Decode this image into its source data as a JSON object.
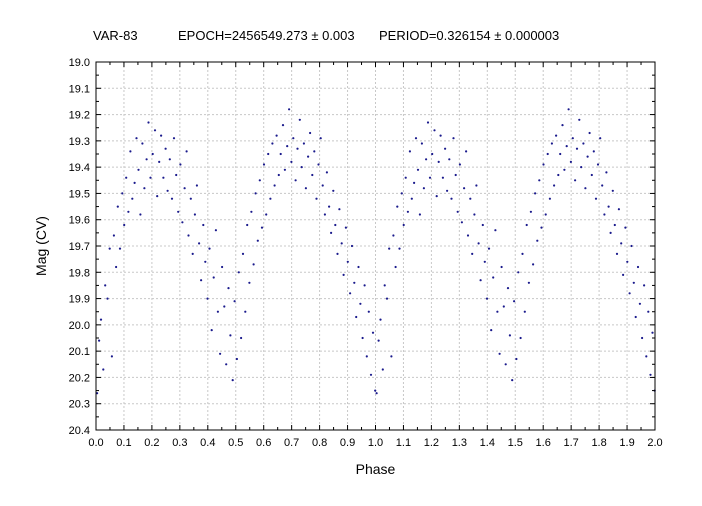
{
  "chart_data": {
    "type": "scatter",
    "title_parts": [
      "VAR-83",
      "EPOCH=2456549.273 ± 0.003",
      "PERIOD=0.326154 ± 0.000003"
    ],
    "xlabel": "Phase",
    "ylabel": "Mag (CV)",
    "xlim": [
      0.0,
      2.0
    ],
    "ylim": [
      19.0,
      20.4
    ],
    "y_inverted": true,
    "grid": true,
    "x_ticks": [
      "0.0",
      "0.1",
      "0.2",
      "0.3",
      "0.4",
      "0.5",
      "0.6",
      "0.7",
      "0.8",
      "0.9",
      "1.0",
      "1.1",
      "1.2",
      "1.3",
      "1.4",
      "1.5",
      "1.6",
      "1.7",
      "1.8",
      "1.9",
      "2.0"
    ],
    "y_ticks": [
      "19.0",
      "19.1",
      "19.2",
      "19.3",
      "19.4",
      "19.5",
      "19.6",
      "19.7",
      "19.8",
      "19.9",
      "20.0",
      "20.1",
      "20.2",
      "20.3",
      "20.4"
    ],
    "marker_color": "#1a1a8c",
    "grid_color": "#c8c8c8",
    "series": [
      {
        "points": [
          [
            0.004,
            20.26
          ],
          [
            0.011,
            20.06
          ],
          [
            0.018,
            19.98
          ],
          [
            0.026,
            20.17
          ],
          [
            0.033,
            19.85
          ],
          [
            0.041,
            19.9
          ],
          [
            0.049,
            19.71
          ],
          [
            0.057,
            20.12
          ],
          [
            0.064,
            19.66
          ],
          [
            0.072,
            19.78
          ],
          [
            0.078,
            19.55
          ],
          [
            0.086,
            19.71
          ],
          [
            0.094,
            19.5
          ],
          [
            0.101,
            19.62
          ],
          [
            0.108,
            19.44
          ],
          [
            0.116,
            19.57
          ],
          [
            0.123,
            19.34
          ],
          [
            0.13,
            19.52
          ],
          [
            0.138,
            19.46
          ],
          [
            0.145,
            19.29
          ],
          [
            0.152,
            19.41
          ],
          [
            0.159,
            19.58
          ],
          [
            0.166,
            19.31
          ],
          [
            0.173,
            19.48
          ],
          [
            0.181,
            19.37
          ],
          [
            0.188,
            19.23
          ],
          [
            0.195,
            19.44
          ],
          [
            0.203,
            19.35
          ],
          [
            0.211,
            19.26
          ],
          [
            0.219,
            19.51
          ],
          [
            0.226,
            19.38
          ],
          [
            0.233,
            19.28
          ],
          [
            0.241,
            19.44
          ],
          [
            0.249,
            19.33
          ],
          [
            0.256,
            19.49
          ],
          [
            0.264,
            19.37
          ],
          [
            0.272,
            19.52
          ],
          [
            0.279,
            19.29
          ],
          [
            0.287,
            19.43
          ],
          [
            0.294,
            19.57
          ],
          [
            0.302,
            19.39
          ],
          [
            0.309,
            19.61
          ],
          [
            0.317,
            19.48
          ],
          [
            0.324,
            19.34
          ],
          [
            0.331,
            19.66
          ],
          [
            0.339,
            19.52
          ],
          [
            0.346,
            19.73
          ],
          [
            0.354,
            19.58
          ],
          [
            0.361,
            19.47
          ],
          [
            0.369,
            19.69
          ],
          [
            0.376,
            19.83
          ],
          [
            0.384,
            19.62
          ],
          [
            0.391,
            19.76
          ],
          [
            0.399,
            19.9
          ],
          [
            0.406,
            19.71
          ],
          [
            0.414,
            20.02
          ],
          [
            0.421,
            19.82
          ],
          [
            0.429,
            19.64
          ],
          [
            0.436,
            19.95
          ],
          [
            0.444,
            20.11
          ],
          [
            0.451,
            19.78
          ],
          [
            0.459,
            19.93
          ],
          [
            0.466,
            20.15
          ],
          [
            0.474,
            19.86
          ],
          [
            0.481,
            20.04
          ],
          [
            0.489,
            20.21
          ],
          [
            0.496,
            19.91
          ],
          [
            0.504,
            20.13
          ],
          [
            0.511,
            19.8
          ],
          [
            0.519,
            20.05
          ],
          [
            0.526,
            19.73
          ],
          [
            0.534,
            19.95
          ],
          [
            0.541,
            19.62
          ],
          [
            0.549,
            19.84
          ],
          [
            0.556,
            19.57
          ],
          [
            0.564,
            19.77
          ],
          [
            0.571,
            19.5
          ],
          [
            0.579,
            19.68
          ],
          [
            0.586,
            19.45
          ],
          [
            0.594,
            19.63
          ],
          [
            0.601,
            19.39
          ],
          [
            0.609,
            19.58
          ],
          [
            0.616,
            19.35
          ],
          [
            0.624,
            19.52
          ],
          [
            0.631,
            19.31
          ],
          [
            0.639,
            19.47
          ],
          [
            0.646,
            19.28
          ],
          [
            0.654,
            19.43
          ],
          [
            0.661,
            19.35
          ],
          [
            0.669,
            19.24
          ],
          [
            0.676,
            19.41
          ],
          [
            0.684,
            19.32
          ],
          [
            0.691,
            19.18
          ],
          [
            0.699,
            19.38
          ],
          [
            0.706,
            19.29
          ],
          [
            0.714,
            19.45
          ],
          [
            0.721,
            19.33
          ],
          [
            0.729,
            19.22
          ],
          [
            0.736,
            19.4
          ],
          [
            0.744,
            19.31
          ],
          [
            0.751,
            19.48
          ],
          [
            0.759,
            19.36
          ],
          [
            0.766,
            19.27
          ],
          [
            0.774,
            19.43
          ],
          [
            0.781,
            19.34
          ],
          [
            0.789,
            19.52
          ],
          [
            0.796,
            19.39
          ],
          [
            0.804,
            19.29
          ],
          [
            0.811,
            19.47
          ],
          [
            0.819,
            19.58
          ],
          [
            0.826,
            19.42
          ],
          [
            0.834,
            19.55
          ],
          [
            0.841,
            19.65
          ],
          [
            0.849,
            19.49
          ],
          [
            0.856,
            19.62
          ],
          [
            0.864,
            19.73
          ],
          [
            0.871,
            19.56
          ],
          [
            0.879,
            19.69
          ],
          [
            0.886,
            19.81
          ],
          [
            0.894,
            19.63
          ],
          [
            0.901,
            19.76
          ],
          [
            0.909,
            19.88
          ],
          [
            0.916,
            19.7
          ],
          [
            0.924,
            19.84
          ],
          [
            0.931,
            19.97
          ],
          [
            0.939,
            19.78
          ],
          [
            0.946,
            19.92
          ],
          [
            0.954,
            20.05
          ],
          [
            0.961,
            19.85
          ],
          [
            0.969,
            20.12
          ],
          [
            0.976,
            19.95
          ],
          [
            0.984,
            20.19
          ],
          [
            0.991,
            20.03
          ],
          [
            0.999,
            20.25
          ]
        ]
      }
    ]
  }
}
